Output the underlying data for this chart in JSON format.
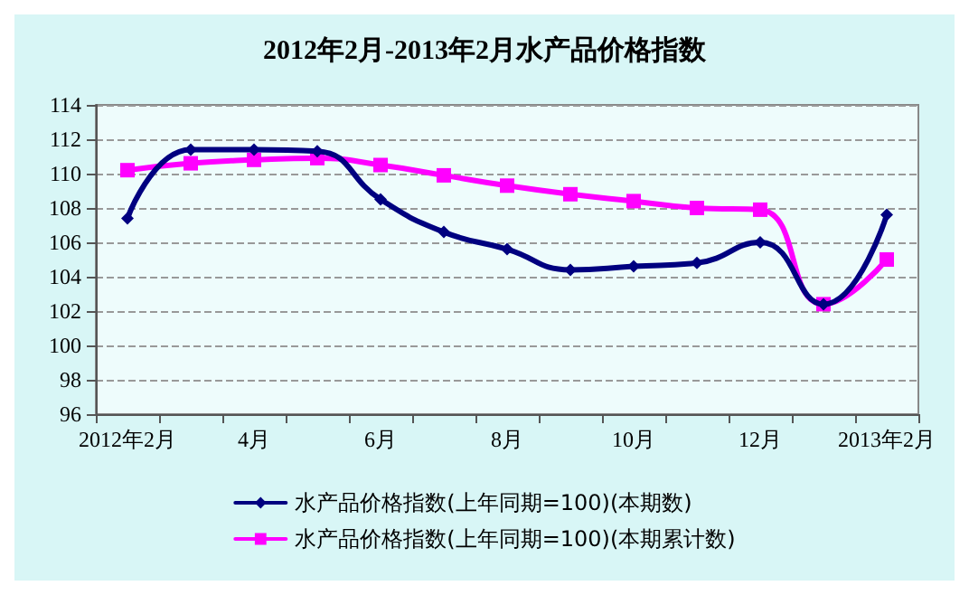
{
  "chart_data": {
    "type": "line",
    "title": "2012年2月-2013年2月水产品价格指数",
    "categories": [
      "2012年2月",
      null,
      "4月",
      null,
      "6月",
      null,
      "8月",
      null,
      "10月",
      null,
      "12月",
      null,
      "2013年2月"
    ],
    "series": [
      {
        "name": "水产品价格指数(上年同期=100)(本期数)",
        "color": "#000080",
        "marker": "diamond",
        "values": [
          107.4,
          111.4,
          111.4,
          111.3,
          108.5,
          106.6,
          105.6,
          104.4,
          104.6,
          104.8,
          106.0,
          102.4,
          107.6
        ]
      },
      {
        "name": "水产品价格指数(上年同期=100)(本期累计数)",
        "color": "#ff00ff",
        "marker": "square",
        "values": [
          110.2,
          110.6,
          110.8,
          110.9,
          110.5,
          109.9,
          109.3,
          108.8,
          108.4,
          108.0,
          107.9,
          102.4,
          105.0
        ]
      }
    ],
    "ylim": [
      96,
      114
    ],
    "yticks": [
      96,
      98,
      100,
      102,
      104,
      106,
      108,
      110,
      112,
      114
    ],
    "grid": "y",
    "legend": "bottom",
    "line_style": "solid"
  }
}
